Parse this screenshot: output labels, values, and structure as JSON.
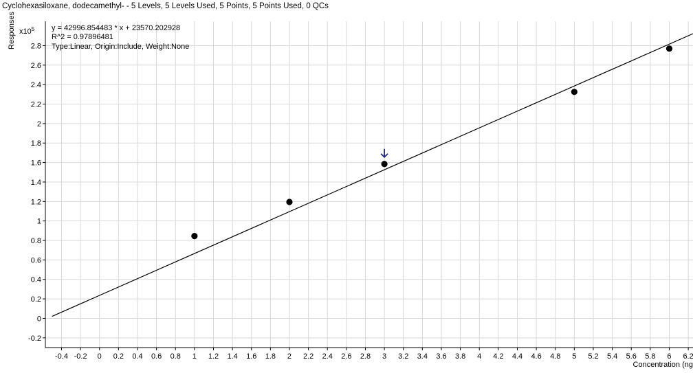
{
  "chart_data": {
    "type": "scatter",
    "title": "Cyclohexasiloxane, dodecamethyl- - 5 Levels, 5 Levels Used, 5 Points, 5 Points Used, 0 QCs",
    "ylabel": "Responses",
    "y_multiplier": "x10",
    "y_multiplier_exp": "5",
    "xlabel": "Concentration (ng",
    "annotations": [
      "y = 42996.854483 * x  + 23570.202928",
      "R^2 = 0.97896481",
      "Type:Linear, Origin:Include, Weight:None"
    ],
    "xlim": [
      -0.57,
      6.25
    ],
    "ylim": [
      -0.3,
      3.05
    ],
    "x_ticks": [
      "-0.4",
      "-0.2",
      "0",
      "0.2",
      "0.4",
      "0.6",
      "0.8",
      "1",
      "1.2",
      "1.4",
      "1.6",
      "1.8",
      "2",
      "2.2",
      "2.4",
      "2.6",
      "2.8",
      "3",
      "3.2",
      "3.4",
      "3.6",
      "3.8",
      "4",
      "4.2",
      "4.4",
      "4.6",
      "4.8",
      "5",
      "5.2",
      "5.4",
      "5.6",
      "5.8",
      "6",
      "6.2"
    ],
    "y_ticks": [
      "-0.2",
      "0",
      "0.2",
      "0.4",
      "0.6",
      "0.8",
      "1",
      "1.2",
      "1.4",
      "1.6",
      "1.8",
      "2",
      "2.2",
      "2.4",
      "2.6",
      "2.8"
    ],
    "grid": true,
    "points": [
      {
        "x": 1,
        "y": 0.845
      },
      {
        "x": 2,
        "y": 1.195
      },
      {
        "x": 3,
        "y": 1.585
      },
      {
        "x": 5,
        "y": 2.325
      },
      {
        "x": 6,
        "y": 2.77
      }
    ],
    "fit_line": {
      "slope": 0.42996854483,
      "intercept": 0.23570202928
    },
    "highlight_x": 3,
    "colors": {
      "axis": "#000000",
      "grid": "#d8d8d8",
      "fit": "#000000",
      "point": "#000000",
      "marker": "#1f2a8a",
      "text": "#000000"
    }
  }
}
